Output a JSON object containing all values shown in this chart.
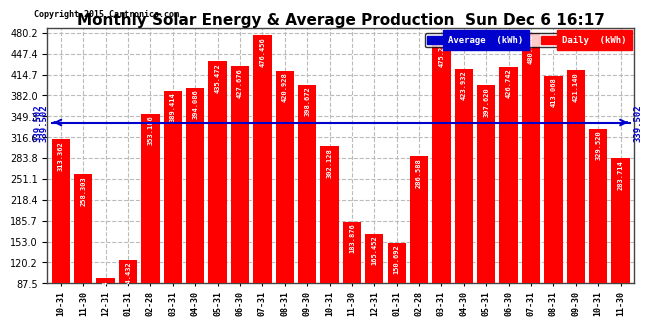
{
  "title": "Monthly Solar Energy & Average Production  Sun Dec 6 16:17",
  "copyright": "Copyright 2015 Cartronics.com",
  "categories": [
    "10-31",
    "11-30",
    "12-31",
    "01-31",
    "02-28",
    "03-31",
    "04-30",
    "05-31",
    "06-30",
    "07-31",
    "08-31",
    "09-30",
    "10-31",
    "11-30",
    "12-31",
    "01-31",
    "02-28",
    "03-31",
    "04-30",
    "05-31",
    "06-30",
    "07-31",
    "08-31",
    "09-30",
    "10-31",
    "11-30"
  ],
  "values": [
    313.362,
    258.303,
    95.214,
    124.432,
    353.186,
    389.414,
    394.086,
    435.472,
    427.676,
    476.456,
    420.928,
    398.672,
    302.128,
    183.876,
    165.452,
    150.692,
    286.588,
    475.22,
    423.932,
    397.62,
    426.742,
    480.168,
    413.068,
    421.14,
    329.52,
    283.714
  ],
  "average": 339.502,
  "bar_color": "#ff0000",
  "avg_line_color": "#0000cc",
  "background_color": "#ffffff",
  "plot_bg_color": "#ffffff",
  "grid_color": "#bbbbbb",
  "title_fontsize": 11,
  "tick_label_fontsize": 6,
  "bar_label_fontsize": 5.0,
  "ylim_min": 87.5,
  "ylim_max": 487.0,
  "yticks": [
    87.5,
    120.2,
    153.0,
    185.7,
    218.4,
    251.1,
    283.8,
    316.6,
    349.3,
    382.0,
    414.7,
    447.4,
    480.2
  ],
  "legend_avg_color": "#0000cc",
  "legend_daily_color": "#ff0000",
  "legend_avg_label": "Average  (kWh)",
  "legend_daily_label": "Daily  (kWh)"
}
